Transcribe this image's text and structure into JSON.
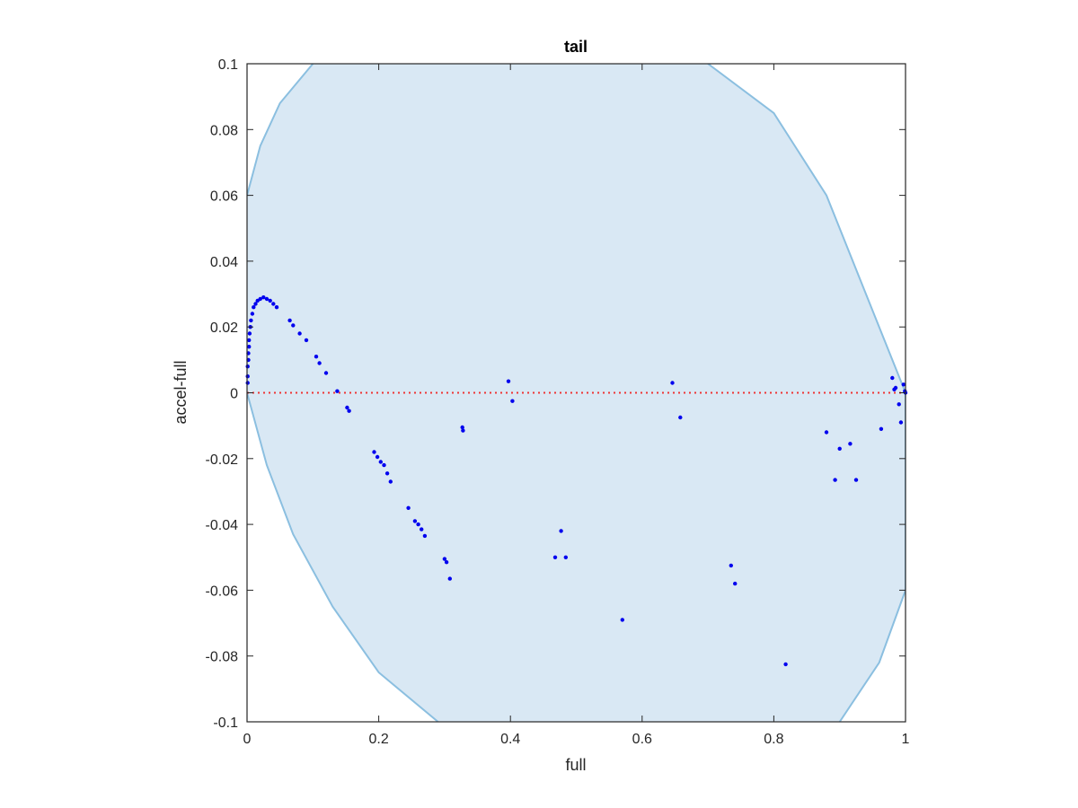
{
  "chart_data": {
    "type": "scatter",
    "title": "tail",
    "xlabel": "full",
    "ylabel": "accel-full",
    "xlim": [
      0,
      1
    ],
    "ylim": [
      -0.1,
      0.1
    ],
    "xticks": [
      0,
      0.2,
      0.4,
      0.6,
      0.8,
      1
    ],
    "xtick_labels": [
      "0",
      "0.2",
      "0.4",
      "0.6",
      "0.8",
      "1"
    ],
    "yticks": [
      -0.1,
      -0.08,
      -0.06,
      -0.04,
      -0.02,
      0,
      0.02,
      0.04,
      0.06,
      0.08,
      0.1
    ],
    "ytick_labels": [
      "-0.1",
      "-0.08",
      "-0.06",
      "-0.04",
      "-0.02",
      "0",
      "0.02",
      "0.04",
      "0.06",
      "0.08",
      "0.1"
    ],
    "grid": false,
    "colors": {
      "points": "#0000ee",
      "region_fill": "#d9e8f4",
      "region_edge": "#8bbfe0",
      "zero_line": "#ee3333",
      "axes": "#262626"
    },
    "reference_line": {
      "y": 0,
      "style": "dotted"
    },
    "shaded_region": {
      "upper_boundary": [
        {
          "x": 0.0,
          "y": 0.06
        },
        {
          "x": 0.02,
          "y": 0.075
        },
        {
          "x": 0.05,
          "y": 0.088
        },
        {
          "x": 0.1,
          "y": 0.1
        }
      ],
      "right_boundary": [
        {
          "x": 0.7,
          "y": 0.1
        },
        {
          "x": 0.8,
          "y": 0.085
        },
        {
          "x": 0.88,
          "y": 0.06
        },
        {
          "x": 0.94,
          "y": 0.03
        },
        {
          "x": 1.0,
          "y": 0.0
        },
        {
          "x": 1.0,
          "y": -0.06
        },
        {
          "x": 0.96,
          "y": -0.082
        },
        {
          "x": 0.9,
          "y": -0.1
        }
      ],
      "lower_boundary": [
        {
          "x": 0.29,
          "y": -0.1
        },
        {
          "x": 0.2,
          "y": -0.085
        },
        {
          "x": 0.13,
          "y": -0.065
        },
        {
          "x": 0.07,
          "y": -0.043
        },
        {
          "x": 0.03,
          "y": -0.022
        },
        {
          "x": 0.0,
          "y": 0.0
        }
      ]
    },
    "series": [
      {
        "points": [
          [
            0.001,
            0.003
          ],
          [
            0.001,
            0.005
          ],
          [
            0.001,
            0.008
          ],
          [
            0.002,
            0.01
          ],
          [
            0.002,
            0.012
          ],
          [
            0.003,
            0.014
          ],
          [
            0.003,
            0.016
          ],
          [
            0.004,
            0.018
          ],
          [
            0.005,
            0.02
          ],
          [
            0.006,
            0.022
          ],
          [
            0.008,
            0.024
          ],
          [
            0.01,
            0.026
          ],
          [
            0.013,
            0.027
          ],
          [
            0.016,
            0.028
          ],
          [
            0.02,
            0.0285
          ],
          [
            0.025,
            0.029
          ],
          [
            0.03,
            0.0285
          ],
          [
            0.035,
            0.028
          ],
          [
            0.04,
            0.027
          ],
          [
            0.045,
            0.026
          ],
          [
            0.065,
            0.022
          ],
          [
            0.07,
            0.0205
          ],
          [
            0.08,
            0.018
          ],
          [
            0.09,
            0.016
          ],
          [
            0.105,
            0.011
          ],
          [
            0.11,
            0.009
          ],
          [
            0.12,
            0.006
          ],
          [
            0.137,
            0.0005
          ],
          [
            0.152,
            -0.0045
          ],
          [
            0.155,
            -0.0055
          ],
          [
            0.193,
            -0.018
          ],
          [
            0.198,
            -0.0195
          ],
          [
            0.203,
            -0.021
          ],
          [
            0.208,
            -0.022
          ],
          [
            0.213,
            -0.0245
          ],
          [
            0.218,
            -0.027
          ],
          [
            0.245,
            -0.035
          ],
          [
            0.255,
            -0.039
          ],
          [
            0.26,
            -0.04
          ],
          [
            0.265,
            -0.0415
          ],
          [
            0.27,
            -0.0435
          ],
          [
            0.3,
            -0.0505
          ],
          [
            0.303,
            -0.0515
          ],
          [
            0.308,
            -0.0565
          ],
          [
            0.327,
            -0.0105
          ],
          [
            0.328,
            -0.0115
          ],
          [
            0.397,
            0.0035
          ],
          [
            0.403,
            -0.0025
          ],
          [
            0.468,
            -0.05
          ],
          [
            0.477,
            -0.042
          ],
          [
            0.484,
            -0.05
          ],
          [
            0.57,
            -0.069
          ],
          [
            0.646,
            0.003
          ],
          [
            0.658,
            -0.0075
          ],
          [
            0.735,
            -0.0525
          ],
          [
            0.741,
            -0.058
          ],
          [
            0.818,
            -0.0825
          ],
          [
            0.88,
            -0.012
          ],
          [
            0.893,
            -0.0265
          ],
          [
            0.9,
            -0.017
          ],
          [
            0.916,
            -0.0155
          ],
          [
            0.925,
            -0.0265
          ],
          [
            0.963,
            -0.011
          ],
          [
            0.98,
            0.0045
          ],
          [
            0.983,
            0.001
          ],
          [
            0.985,
            0.0015
          ],
          [
            0.99,
            -0.0035
          ],
          [
            0.993,
            -0.009
          ],
          [
            0.997,
            0.0025
          ],
          [
            0.999,
            0.0005
          ],
          [
            1.0,
            0.0
          ]
        ]
      }
    ]
  }
}
